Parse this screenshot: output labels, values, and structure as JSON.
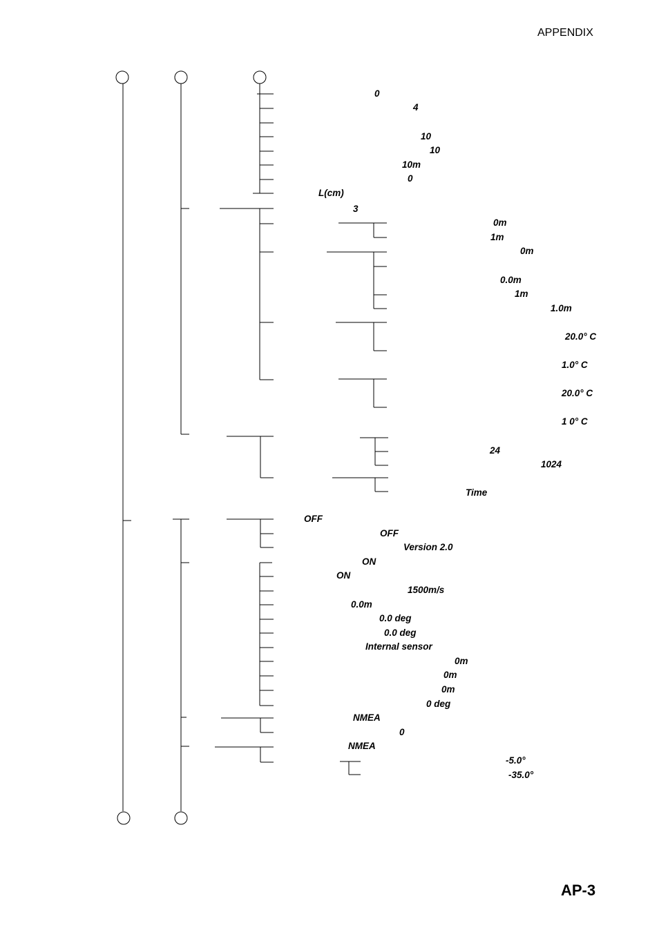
{
  "header": {
    "section": "APPENDIX"
  },
  "footer": {
    "page_number": "AP-3"
  },
  "menu_values": {
    "v01": "0",
    "v02": "4",
    "v03": "10",
    "v04": "10",
    "v05": "10m",
    "v06": "0",
    "v07": "L(cm)",
    "v08": "3",
    "v09": "0m",
    "v10": "1m",
    "v11": "0m",
    "v12": "0.0m",
    "v13": "1m",
    "v14": "1.0m",
    "v15": "20.0° C",
    "v16": "1.0° C",
    "v17": "20.0° C",
    "v18": "1 0° C",
    "v19": "24",
    "v20": "1024",
    "v21": "Time",
    "v22": "OFF",
    "v23": "OFF",
    "v24": "Version 2.0",
    "v25": "ON",
    "v26": "ON",
    "v27": "1500m/s",
    "v28": "0.0m",
    "v29": "0.0 deg",
    "v30": "0.0 deg",
    "v31": "Internal sensor",
    "v32": "0m",
    "v33": "0m",
    "v34": "0m",
    "v35": "0 deg",
    "v36": "NMEA",
    "v37": "0",
    "v38": "NMEA",
    "v39": "-5.0°",
    "v40": "-35.0°"
  }
}
